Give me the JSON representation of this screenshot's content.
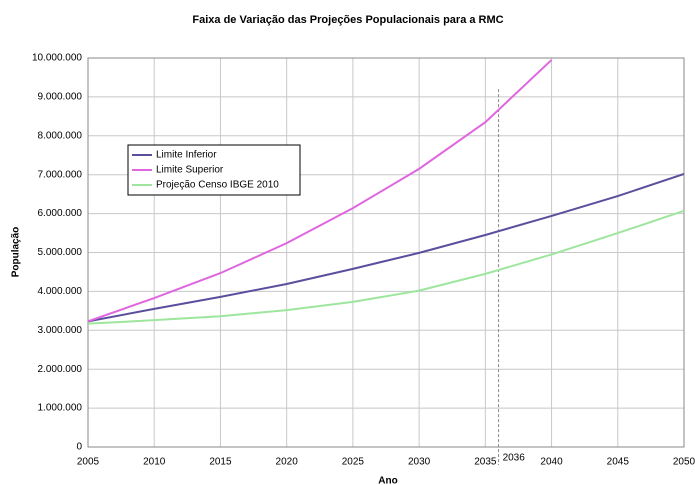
{
  "chart_data": {
    "type": "line",
    "title": "Faixa de Variação das Projeções Populacionais para a RMC",
    "x_label": "Ano",
    "y_label": "População",
    "x": [
      2005,
      2010,
      2015,
      2020,
      2025,
      2030,
      2035,
      2040,
      2045,
      2050
    ],
    "series": [
      {
        "name": "Limite Inferior",
        "color": "#5a4f9c",
        "values": [
          3230000,
          3550000,
          3860000,
          4190000,
          4580000,
          4990000,
          5450000,
          5940000,
          6450000,
          7020000
        ]
      },
      {
        "name": "Limite Superior",
        "color": "#e066e0",
        "values": [
          3230000,
          3830000,
          4470000,
          5240000,
          6140000,
          7150000,
          8350000,
          9950000,
          null,
          null
        ]
      },
      {
        "name": "Projeção Censo IBGE 2010",
        "color": "#9ee69e",
        "values": [
          3170000,
          3260000,
          3360000,
          3520000,
          3730000,
          4020000,
          4450000,
          4950000,
          5500000,
          6070000
        ]
      }
    ],
    "xlim": [
      2005,
      2050
    ],
    "xticks": [
      2005,
      2010,
      2015,
      2020,
      2025,
      2030,
      2035,
      2040,
      2045,
      2050
    ],
    "ylim": [
      0,
      10000000
    ],
    "yticks": [
      0,
      {
        "value": 1000000,
        "label": "1.000.000"
      },
      {
        "value": 2000000,
        "label": "2.000.000"
      },
      {
        "value": 3000000,
        "label": "3.000.000"
      },
      {
        "value": 4000000,
        "label": "4.000.000"
      },
      {
        "value": 5000000,
        "label": "5.000.000"
      },
      {
        "value": 6000000,
        "label": "6.000.000"
      },
      {
        "value": 7000000,
        "label": "7.000.000"
      },
      {
        "value": 8000000,
        "label": "8.000.000"
      },
      {
        "value": 9000000,
        "label": "9.000.000"
      },
      {
        "value": 10000000,
        "label": "10.000.000"
      }
    ],
    "vline": 2036,
    "grid": true,
    "legend": "upper left"
  }
}
